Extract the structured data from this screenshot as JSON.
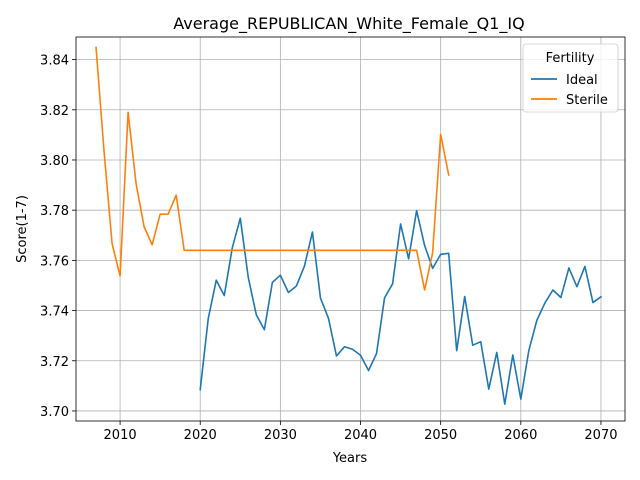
{
  "chart_data": {
    "type": "line",
    "title": "Average_REPUBLICAN_White_Female_Q1_IQ",
    "xlabel": "Years",
    "ylabel": "Score(1-7)",
    "xlim": [
      2004.5,
      2073
    ],
    "ylim": [
      3.696,
      3.849
    ],
    "xticks": [
      2010,
      2020,
      2030,
      2040,
      2050,
      2060,
      2070
    ],
    "yticks": [
      3.7,
      3.72,
      3.74,
      3.76,
      3.78,
      3.8,
      3.82,
      3.84
    ],
    "ytick_labels": [
      "3.70",
      "3.72",
      "3.74",
      "3.76",
      "3.78",
      "3.80",
      "3.82",
      "3.84"
    ],
    "grid": true,
    "legend": {
      "title": "Fertility",
      "position": "top-right"
    },
    "series": [
      {
        "name": "Ideal",
        "color": "#1f77b4",
        "x": [
          2020,
          2021,
          2022,
          2023,
          2024,
          2025,
          2026,
          2027,
          2028,
          2029,
          2030,
          2031,
          2032,
          2033,
          2034,
          2035,
          2036,
          2037,
          2038,
          2039,
          2040,
          2041,
          2042,
          2043,
          2044,
          2045,
          2046,
          2047,
          2048,
          2049,
          2050,
          2051,
          2052,
          2053,
          2054,
          2055,
          2056,
          2057,
          2058,
          2059,
          2060,
          2061,
          2062,
          2063,
          2064,
          2065,
          2066,
          2067,
          2068,
          2069,
          2070
        ],
        "y": [
          3.7085,
          3.7368,
          3.7521,
          3.746,
          3.765,
          3.7768,
          3.7531,
          3.7383,
          3.7324,
          3.7512,
          3.7541,
          3.7472,
          3.7498,
          3.7577,
          3.7713,
          3.745,
          3.7369,
          3.7219,
          3.7256,
          3.7246,
          3.7222,
          3.7161,
          3.7229,
          3.7451,
          3.7506,
          3.7745,
          3.7606,
          3.7798,
          3.7659,
          3.7568,
          3.7624,
          3.7628,
          3.724,
          3.7456,
          3.7262,
          3.7276,
          3.7087,
          3.7233,
          3.7027,
          3.7223,
          3.7047,
          3.7241,
          3.7361,
          3.743,
          3.7482,
          3.7452,
          3.757,
          3.7495,
          3.7576,
          3.7432,
          3.7455
        ]
      },
      {
        "name": "Sterile",
        "color": "#ff7f0e",
        "x": [
          2007,
          2008,
          2009,
          2010,
          2011,
          2012,
          2013,
          2014,
          2015,
          2016,
          2017,
          2018,
          2019,
          2020,
          2021,
          2022,
          2023,
          2024,
          2025,
          2026,
          2027,
          2028,
          2029,
          2030,
          2031,
          2032,
          2033,
          2034,
          2035,
          2036,
          2037,
          2038,
          2039,
          2040,
          2041,
          2042,
          2043,
          2044,
          2045,
          2046,
          2047,
          2048,
          2049,
          2050,
          2051
        ],
        "y": [
          3.8448,
          3.8035,
          3.7667,
          3.7538,
          3.819,
          3.7905,
          3.7734,
          3.7662,
          3.7784,
          3.7784,
          3.786,
          3.764,
          3.764,
          3.764,
          3.764,
          3.764,
          3.764,
          3.764,
          3.764,
          3.764,
          3.764,
          3.764,
          3.764,
          3.764,
          3.764,
          3.764,
          3.764,
          3.764,
          3.764,
          3.764,
          3.764,
          3.764,
          3.764,
          3.764,
          3.764,
          3.764,
          3.764,
          3.764,
          3.764,
          3.764,
          3.764,
          3.7482,
          3.7631,
          3.8102,
          3.794
        ]
      }
    ]
  }
}
